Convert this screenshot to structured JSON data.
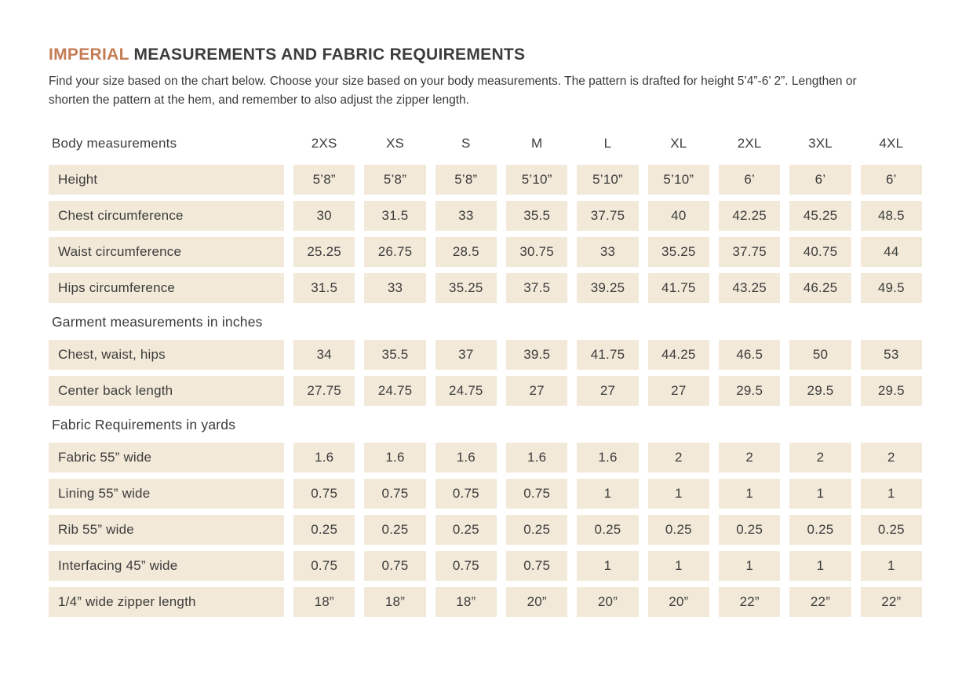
{
  "meta": {
    "title_accent": "IMPERIAL",
    "title_rest": " MEASUREMENTS AND FABRIC REQUIREMENTS",
    "intro": "Find your size based on the chart below. Choose your size based on your body measurements. The pattern is drafted for height 5’4”-6’ 2”. Lengthen or shorten the pattern at the hem, and remember to also adjust the zipper length."
  },
  "colors": {
    "accent": "#c57c55",
    "cell_bg": "#f2e9d8",
    "text": "#3c3c3c"
  },
  "chart_data": {
    "type": "table",
    "column_headers": [
      "Body measurements",
      "2XS",
      "XS",
      "S",
      "M",
      "L",
      "XL",
      "2XL",
      "3XL",
      "4XL"
    ],
    "sections": [
      {
        "heading": "",
        "rows": [
          {
            "label": "Height",
            "values": [
              "5’8”",
              "5’8”",
              "5’8”",
              "5’10”",
              "5’10”",
              "5’10”",
              "6’",
              "6’",
              "6’"
            ]
          },
          {
            "label": "Chest circumference",
            "values": [
              "30",
              "31.5",
              "33",
              "35.5",
              "37.75",
              "40",
              "42.25",
              "45.25",
              "48.5"
            ]
          },
          {
            "label": "Waist circumference",
            "values": [
              "25.25",
              "26.75",
              "28.5",
              "30.75",
              "33",
              "35.25",
              "37.75",
              "40.75",
              "44"
            ]
          },
          {
            "label": "Hips circumference",
            "values": [
              "31.5",
              "33",
              "35.25",
              "37.5",
              "39.25",
              "41.75",
              "43.25",
              "46.25",
              "49.5"
            ]
          }
        ]
      },
      {
        "heading": "Garment measurements in inches",
        "rows": [
          {
            "label": "Chest, waist, hips",
            "values": [
              "34",
              "35.5",
              "37",
              "39.5",
              "41.75",
              "44.25",
              "46.5",
              "50",
              "53"
            ]
          },
          {
            "label": "Center back length",
            "values": [
              "27.75",
              "24.75",
              "24.75",
              "27",
              "27",
              "27",
              "29.5",
              "29.5",
              "29.5"
            ]
          }
        ]
      },
      {
        "heading": "Fabric Requirements in yards",
        "rows": [
          {
            "label": "Fabric 55” wide",
            "values": [
              "1.6",
              "1.6",
              "1.6",
              "1.6",
              "1.6",
              "2",
              "2",
              "2",
              "2"
            ]
          },
          {
            "label": "Lining 55” wide",
            "values": [
              "0.75",
              "0.75",
              "0.75",
              "0.75",
              "1",
              "1",
              "1",
              "1",
              "1"
            ]
          },
          {
            "label": "Rib 55” wide",
            "values": [
              "0.25",
              "0.25",
              "0.25",
              "0.25",
              "0.25",
              "0.25",
              "0.25",
              "0.25",
              "0.25"
            ]
          },
          {
            "label": "Interfacing 45” wide",
            "values": [
              "0.75",
              "0.75",
              "0.75",
              "0.75",
              "1",
              "1",
              "1",
              "1",
              "1"
            ]
          },
          {
            "label": "1/4” wide zipper length",
            "values": [
              "18”",
              "18”",
              "18”",
              "20”",
              "20”",
              "20”",
              "22”",
              "22”",
              "22”"
            ]
          }
        ]
      }
    ]
  }
}
